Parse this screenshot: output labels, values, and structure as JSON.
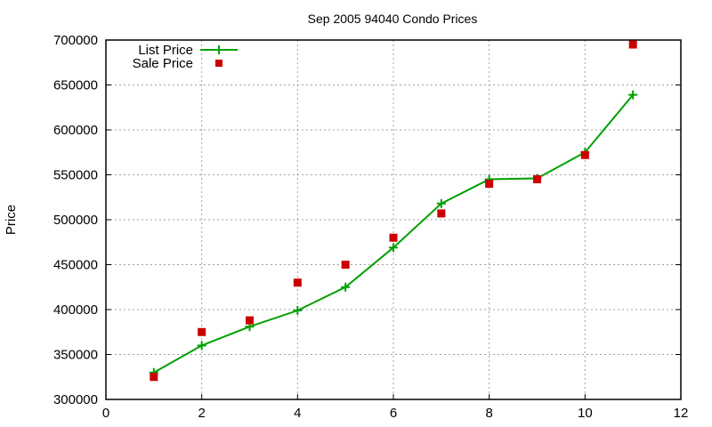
{
  "chart_data": {
    "type": "line",
    "title": "Sep 2005 94040 Condo Prices",
    "xlabel": "",
    "ylabel": "Price",
    "xlim": [
      0,
      12
    ],
    "ylim": [
      300000,
      700000
    ],
    "xticks": [
      0,
      2,
      4,
      6,
      8,
      10,
      12
    ],
    "yticks": [
      300000,
      350000,
      400000,
      450000,
      500000,
      550000,
      600000,
      650000,
      700000
    ],
    "grid": true,
    "legend_position": "top-left",
    "x": [
      1,
      2,
      3,
      4,
      5,
      6,
      7,
      8,
      9,
      10,
      11
    ],
    "series": [
      {
        "name": "List Price",
        "style": "linespoints",
        "marker": "plus",
        "color": "#00a000",
        "values": [
          330000,
          360000,
          381000,
          399000,
          425000,
          469000,
          518000,
          545000,
          546000,
          575000,
          639000
        ]
      },
      {
        "name": "Sale Price",
        "style": "points",
        "marker": "square",
        "color": "#cc0000",
        "values": [
          325000,
          375000,
          388000,
          430000,
          450000,
          480000,
          507000,
          540000,
          545000,
          572000,
          695000
        ]
      }
    ]
  }
}
